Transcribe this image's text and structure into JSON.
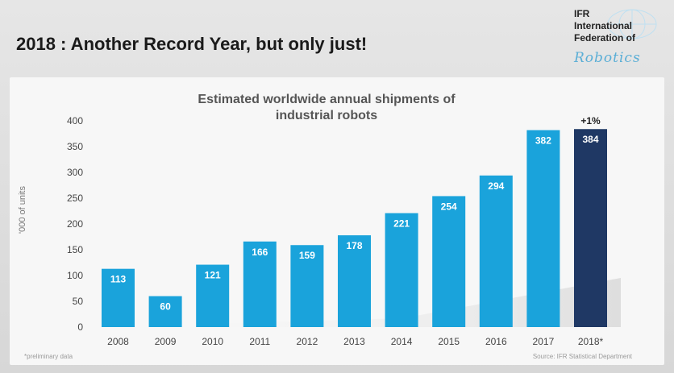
{
  "slide": {
    "title": "2018 : Another Record Year, but only just!",
    "footnote": "*preliminary data",
    "source": "Source: IFR Statistical Department"
  },
  "logo": {
    "line1": "IFR",
    "line2": "International",
    "line3": "Federation of",
    "script": "Robotics"
  },
  "colors": {
    "bar": "#1aa3db",
    "highlight": "#1f3864",
    "bar_label": "#ffffff",
    "axis_text": "#444444"
  },
  "chart_data": {
    "type": "bar",
    "title": "Estimated worldwide annual shipments of industrial robots",
    "title_lines": [
      "Estimated worldwide annual shipments of",
      "industrial robots"
    ],
    "ylabel": "'000 of units",
    "xlabel": "",
    "categories": [
      "2008",
      "2009",
      "2010",
      "2011",
      "2012",
      "2013",
      "2014",
      "2015",
      "2016",
      "2017",
      "2018*"
    ],
    "values": [
      113,
      60,
      121,
      166,
      159,
      178,
      221,
      254,
      294,
      382,
      384
    ],
    "highlight_index": 10,
    "annotation": "+1%",
    "ylim": [
      0,
      400
    ],
    "yticks": [
      0,
      50,
      100,
      150,
      200,
      250,
      300,
      350,
      400
    ],
    "grid": false,
    "legend": "none"
  }
}
